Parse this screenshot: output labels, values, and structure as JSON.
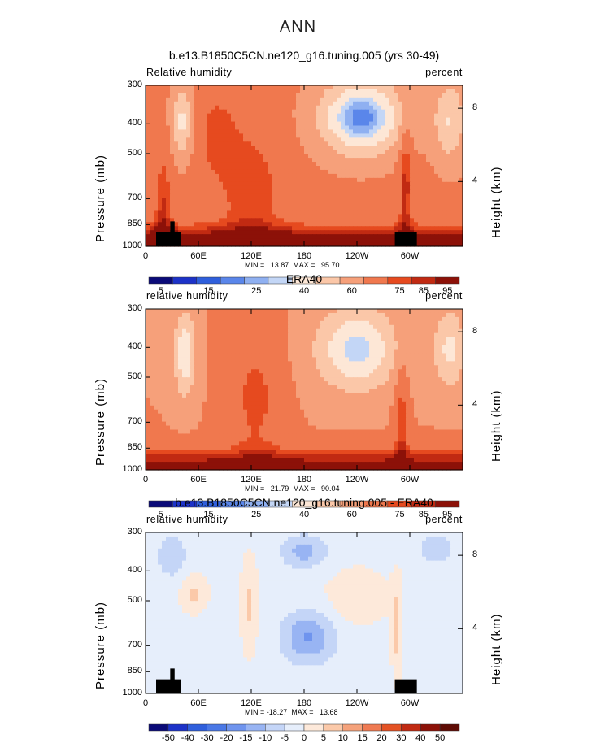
{
  "figure_title": "ANN",
  "colors": {
    "seq_palette": [
      "#0a0a78",
      "#1c32c8",
      "#2f5fdc",
      "#5a86ea",
      "#8fb0f1",
      "#c3d6f6",
      "#fde7d6",
      "#fbc7a8",
      "#f6a07a",
      "#f0784e",
      "#e64a1f",
      "#c12a12",
      "#8c1108"
    ],
    "diff_palette": [
      "#0a0a78",
      "#1c32c8",
      "#2f5fdc",
      "#4a78e6",
      "#6f94ee",
      "#98b4f3",
      "#c4d5f7",
      "#e6eefb",
      "#fde9da",
      "#fbc9a9",
      "#f5a27b",
      "#ef7a52",
      "#e45224",
      "#c12a12",
      "#8c1108",
      "#5e0b04"
    ],
    "terrain": "#000000"
  },
  "panels": [
    {
      "title": "b.e13.B1850C5CN.ne120_g16.tuning.005 (yrs 30-49)",
      "left_label": "Relative humidity",
      "right_label": "percent",
      "y_axis_label": "Pressure (mb)",
      "y2_axis_label": "Height (km)",
      "min_max": "MIN =   13.87  MAX =   95.70",
      "colorbar_labels": [
        "5",
        "15",
        "25",
        "40",
        "60",
        "75",
        "85",
        "95"
      ]
    },
    {
      "title": "ERA40",
      "left_label": "relative humidity",
      "right_label": "percent",
      "y_axis_label": "Pressure (mb)",
      "y2_axis_label": "Height (km)",
      "min_max": "MIN =   21.79  MAX =   90.04",
      "colorbar_labels": [
        "5",
        "15",
        "25",
        "40",
        "60",
        "75",
        "85",
        "95"
      ]
    },
    {
      "title": "b.e13.B1850C5CN.ne120_g16.tuning.005 - ERA40",
      "left_label": "relative humidity",
      "right_label": "percent",
      "y_axis_label": "Pressure (mb)",
      "y2_axis_label": "Height (km)",
      "min_max": "MIN = -18.27  MAX =   13.68",
      "colorbar_labels": [
        "-50",
        "-40",
        "-30",
        "-20",
        "-15",
        "-10",
        "-5",
        "0",
        "5",
        "10",
        "15",
        "20",
        "30",
        "40",
        "50"
      ]
    }
  ],
  "chart_data": [
    {
      "type": "heatmap",
      "title": "b.e13.B1850C5CN.ne120_g16.tuning.005 (yrs 30-49)",
      "xlabel": "",
      "ylabel": "Pressure (mb)",
      "x_ticks": [
        "0",
        "60E",
        "120E",
        "180",
        "120W",
        "60W"
      ],
      "y_ticks": [
        300,
        400,
        500,
        700,
        850,
        1000
      ],
      "y2_ticks": [
        8,
        4
      ],
      "xlim": [
        0,
        360
      ],
      "ylim": [
        1000,
        300
      ],
      "min": 13.87,
      "max": 95.7,
      "levels": [
        5,
        10,
        15,
        20,
        25,
        30,
        40,
        50,
        60,
        70,
        75,
        80,
        85,
        90,
        95
      ],
      "features": [
        {
          "lon": 250,
          "p": 410,
          "value": 15,
          "kind": "min"
        },
        {
          "lon": 42,
          "p": 400,
          "value": 30,
          "kind": "min"
        },
        {
          "lon": 345,
          "p": 400,
          "value": 35,
          "kind": "min"
        },
        {
          "lon": 180,
          "p": 930,
          "value": 90,
          "kind": "max"
        },
        {
          "lon": 30,
          "p": 870,
          "value": 92,
          "kind": "max"
        },
        {
          "lon": 280,
          "p": 870,
          "value": 90,
          "kind": "max"
        }
      ]
    },
    {
      "type": "heatmap",
      "title": "ERA40",
      "xlabel": "",
      "ylabel": "Pressure (mb)",
      "x_ticks": [
        "0",
        "60E",
        "120E",
        "180",
        "120W",
        "60W"
      ],
      "y_ticks": [
        300,
        400,
        500,
        700,
        850,
        1000
      ],
      "y2_ticks": [
        8,
        4
      ],
      "xlim": [
        0,
        360
      ],
      "ylim": [
        1000,
        300
      ],
      "min": 21.79,
      "max": 90.04,
      "levels": [
        5,
        10,
        15,
        20,
        25,
        30,
        40,
        50,
        60,
        70,
        75,
        80,
        85,
        90,
        95
      ],
      "features": [
        {
          "lon": 240,
          "p": 420,
          "value": 25,
          "kind": "min"
        },
        {
          "lon": 45,
          "p": 420,
          "value": 28,
          "kind": "min"
        },
        {
          "lon": 345,
          "p": 420,
          "value": 35,
          "kind": "min"
        },
        {
          "lon": 180,
          "p": 930,
          "value": 88,
          "kind": "max"
        },
        {
          "lon": 270,
          "p": 930,
          "value": 88,
          "kind": "max"
        }
      ]
    },
    {
      "type": "heatmap",
      "title": "b.e13.B1850C5CN.ne120_g16.tuning.005 - ERA40",
      "xlabel": "",
      "ylabel": "Pressure (mb)",
      "x_ticks": [
        "0",
        "60E",
        "120E",
        "180",
        "120W",
        "60W"
      ],
      "y_ticks": [
        300,
        400,
        500,
        700,
        850,
        1000
      ],
      "y2_ticks": [
        8,
        4
      ],
      "xlim": [
        0,
        360
      ],
      "ylim": [
        1000,
        300
      ],
      "min": -18.27,
      "max": 13.68,
      "levels": [
        -50,
        -40,
        -30,
        -20,
        -15,
        -10,
        -5,
        0,
        5,
        10,
        15,
        20,
        30,
        40,
        50
      ],
      "features": [
        {
          "lon": 180,
          "p": 720,
          "value": -15,
          "kind": "min"
        },
        {
          "lon": 180,
          "p": 380,
          "value": -12,
          "kind": "min"
        },
        {
          "lon": 30,
          "p": 410,
          "value": -10,
          "kind": "min"
        },
        {
          "lon": 50,
          "p": 480,
          "value": 6,
          "kind": "max"
        },
        {
          "lon": 118,
          "p": 480,
          "value": 8,
          "kind": "max"
        },
        {
          "lon": 285,
          "p": 620,
          "value": 10,
          "kind": "max"
        }
      ]
    }
  ]
}
